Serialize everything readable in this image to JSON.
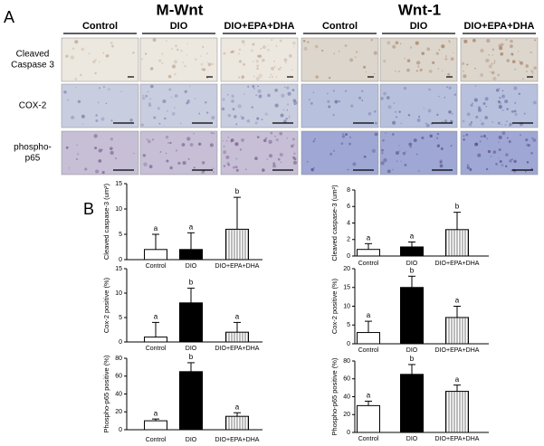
{
  "panel_a": {
    "label": "A",
    "groups": [
      {
        "title": "M-Wnt",
        "columns": [
          "Control",
          "DIO",
          "DIO+EPA+DHA"
        ]
      },
      {
        "title": "Wnt-1",
        "columns": [
          "Control",
          "DIO",
          "DIO+EPA+DHA"
        ]
      }
    ],
    "row_labels": [
      [
        "Cleaved",
        "Caspase 3"
      ],
      [
        "COX-2"
      ],
      [
        "phospho-",
        "p65"
      ]
    ]
  },
  "panel_b": {
    "label": "B"
  },
  "chart_data": [
    {
      "type": "bar",
      "ylabel": "Cleaved caspase-3 (um²)",
      "categories": [
        "Control",
        "DIO",
        "DIO+EPA+DHA"
      ],
      "values": [
        2,
        2,
        6
      ],
      "errors": [
        3,
        3.3,
        6.3
      ],
      "annotations": [
        "a",
        "a",
        "b"
      ],
      "ylim": [
        0,
        15
      ],
      "yticks": [
        0,
        5,
        10,
        15
      ],
      "colors": [
        "#ffffff",
        "#000000",
        "#ffffff"
      ],
      "hatch": [
        false,
        false,
        true
      ]
    },
    {
      "type": "bar",
      "ylabel": "Cleaved caspase-3 (um²)",
      "categories": [
        "Control",
        "DIO",
        "DIO+EPA+DHA"
      ],
      "values": [
        0.8,
        1.1,
        3.2
      ],
      "errors": [
        0.7,
        0.6,
        2.1
      ],
      "annotations": [
        "a",
        "a",
        "b"
      ],
      "ylim": [
        0,
        8
      ],
      "yticks": [
        0,
        2,
        4,
        6,
        8
      ],
      "colors": [
        "#ffffff",
        "#000000",
        "#ffffff"
      ],
      "hatch": [
        false,
        false,
        true
      ]
    },
    {
      "type": "bar",
      "ylabel": "Cox-2 positive (%)",
      "categories": [
        "Control",
        "DIO",
        "DIO+EPA+DHA"
      ],
      "values": [
        1,
        8,
        2
      ],
      "errors": [
        3,
        3,
        2
      ],
      "annotations": [
        "a",
        "b",
        "a"
      ],
      "ylim": [
        0,
        15
      ],
      "yticks": [
        0,
        5,
        10,
        15
      ],
      "colors": [
        "#ffffff",
        "#000000",
        "#ffffff"
      ],
      "hatch": [
        false,
        false,
        true
      ]
    },
    {
      "type": "bar",
      "ylabel": "Cox-2 positive (%)",
      "categories": [
        "Control",
        "DIO",
        "DIO+EPA+DHA"
      ],
      "values": [
        3,
        15,
        7
      ],
      "errors": [
        3,
        3,
        3
      ],
      "annotations": [
        "a",
        "b",
        "a"
      ],
      "ylim": [
        0,
        20
      ],
      "yticks": [
        0,
        5,
        10,
        15,
        20
      ],
      "colors": [
        "#ffffff",
        "#000000",
        "#ffffff"
      ],
      "hatch": [
        false,
        false,
        true
      ]
    },
    {
      "type": "bar",
      "ylabel": "Phospho-p65 positive (%)",
      "categories": [
        "Control",
        "DIO",
        "DIO+EPA+DHA"
      ],
      "values": [
        10,
        65,
        15
      ],
      "errors": [
        2,
        10,
        4
      ],
      "annotations": [
        "a",
        "b",
        "a"
      ],
      "ylim": [
        0,
        80
      ],
      "yticks": [
        0,
        20,
        40,
        60,
        80
      ],
      "colors": [
        "#ffffff",
        "#000000",
        "#ffffff"
      ],
      "hatch": [
        false,
        false,
        true
      ]
    },
    {
      "type": "bar",
      "ylabel": "Phospho-p65 positive (%)",
      "categories": [
        "Control",
        "DIO",
        "DIO+EPA+DHA"
      ],
      "values": [
        30,
        65,
        46
      ],
      "errors": [
        5,
        11,
        7
      ],
      "annotations": [
        "a",
        "b",
        "a"
      ],
      "ylim": [
        0,
        80
      ],
      "yticks": [
        0,
        20,
        40,
        60,
        80
      ],
      "colors": [
        "#ffffff",
        "#000000",
        "#ffffff"
      ],
      "hatch": [
        false,
        false,
        true
      ]
    }
  ]
}
